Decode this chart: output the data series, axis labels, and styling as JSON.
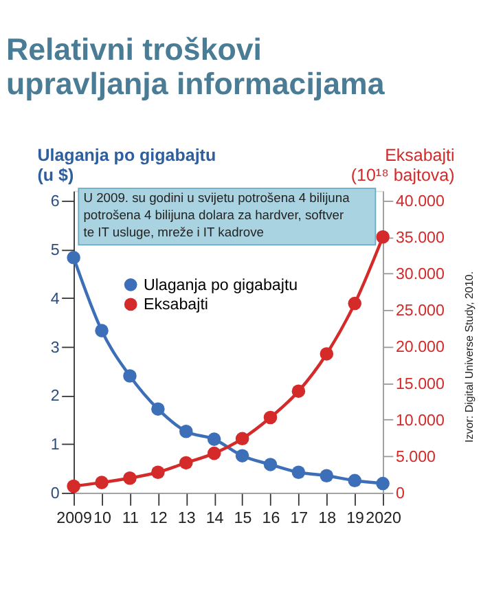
{
  "chart_data": {
    "type": "line",
    "title": "Relativni troškovi\nupravljanja informacijama",
    "ylabel": "Ulaganja po gigabajtu\n(u $)",
    "y2label": "Eksabajti\n(10¹⁸ bajtova)",
    "categories": [
      "2009",
      "10",
      "11",
      "12",
      "13",
      "14",
      "15",
      "16",
      "17",
      "18",
      "19",
      "2020"
    ],
    "series": [
      {
        "name": "Ulaganja po gigabajtu",
        "color": "#3d6fb8",
        "values": [
          4.83,
          3.33,
          2.4,
          1.72,
          1.26,
          1.1,
          0.76,
          0.58,
          0.42,
          0.35,
          0.25,
          0.19
        ]
      },
      {
        "name": "Eksabajti",
        "color": "#d42a2a",
        "axis": "y2",
        "values": [
          900,
          1400,
          2000,
          2800,
          4100,
          5400,
          7400,
          10300,
          13900,
          19000,
          25900,
          35000
        ]
      }
    ],
    "ylim": [
      0,
      6.2
    ],
    "yticks": [
      0,
      1,
      2,
      3,
      4,
      5,
      6
    ],
    "y2lim": [
      0,
      41300
    ],
    "y2ticks": [
      0,
      {
        "value": 5000,
        "label": "5.000"
      },
      {
        "value": 10000,
        "label": "10.000"
      },
      {
        "value": 15000,
        "label": "15.000"
      },
      {
        "value": 20000,
        "label": "20.000"
      },
      {
        "value": 25000,
        "label": "25.000"
      },
      {
        "value": 30000,
        "label": "30.000"
      },
      {
        "value": 35000,
        "label": "35.000"
      },
      {
        "value": 40000,
        "label": "40.000"
      }
    ],
    "annotations": [
      "U 2009. su godini u svijetu potrošena 4 bilijuna\npotrošena 4 bilijuna dolara za hardver, softver\nte IT usluge, mreže i IT kadrove",
      "Izvor: Digital Universe Study, 2010."
    ],
    "legend": "top left",
    "marker": "circle"
  }
}
